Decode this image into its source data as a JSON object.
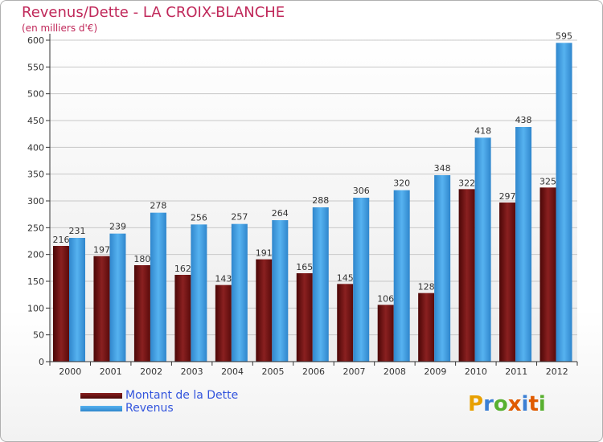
{
  "header": {
    "title": "Revenus/Dette - LA CROIX-BLANCHE",
    "subtitle": "(en milliers d'€)"
  },
  "colors": {
    "dette": "#6e1313",
    "revenus": "#3d9de0",
    "title": "#c0285a"
  },
  "legend": {
    "dette_label": "Montant de la Dette",
    "revenus_label": "Revenus"
  },
  "logo": {
    "letters": [
      "P",
      "r",
      "o",
      "x",
      "i",
      "t",
      "i"
    ],
    "colors": [
      "#e8a000",
      "#3b7fd4",
      "#58b030",
      "#e05a00",
      "#3b7fd4",
      "#e05a00",
      "#58b030"
    ]
  },
  "chart_data": {
    "type": "bar",
    "title": "Revenus/Dette - LA CROIX-BLANCHE",
    "ylabel": "(en milliers d'€)",
    "xlabel": "",
    "categories": [
      "2000",
      "2001",
      "2002",
      "2003",
      "2004",
      "2005",
      "2006",
      "2007",
      "2008",
      "2009",
      "2010",
      "2011",
      "2012"
    ],
    "series": [
      {
        "name": "Montant de la Dette",
        "values": [
          216,
          197,
          180,
          162,
          143,
          191,
          165,
          145,
          106,
          128,
          322,
          297,
          325
        ]
      },
      {
        "name": "Revenus",
        "values": [
          231,
          239,
          278,
          256,
          257,
          264,
          288,
          306,
          320,
          348,
          418,
          438,
          595
        ]
      }
    ],
    "ylim": [
      0,
      600
    ],
    "yticks": [
      0,
      50,
      100,
      150,
      200,
      250,
      300,
      350,
      400,
      450,
      500,
      550,
      600
    ],
    "grid": true,
    "legend_position": "bottom-left"
  }
}
